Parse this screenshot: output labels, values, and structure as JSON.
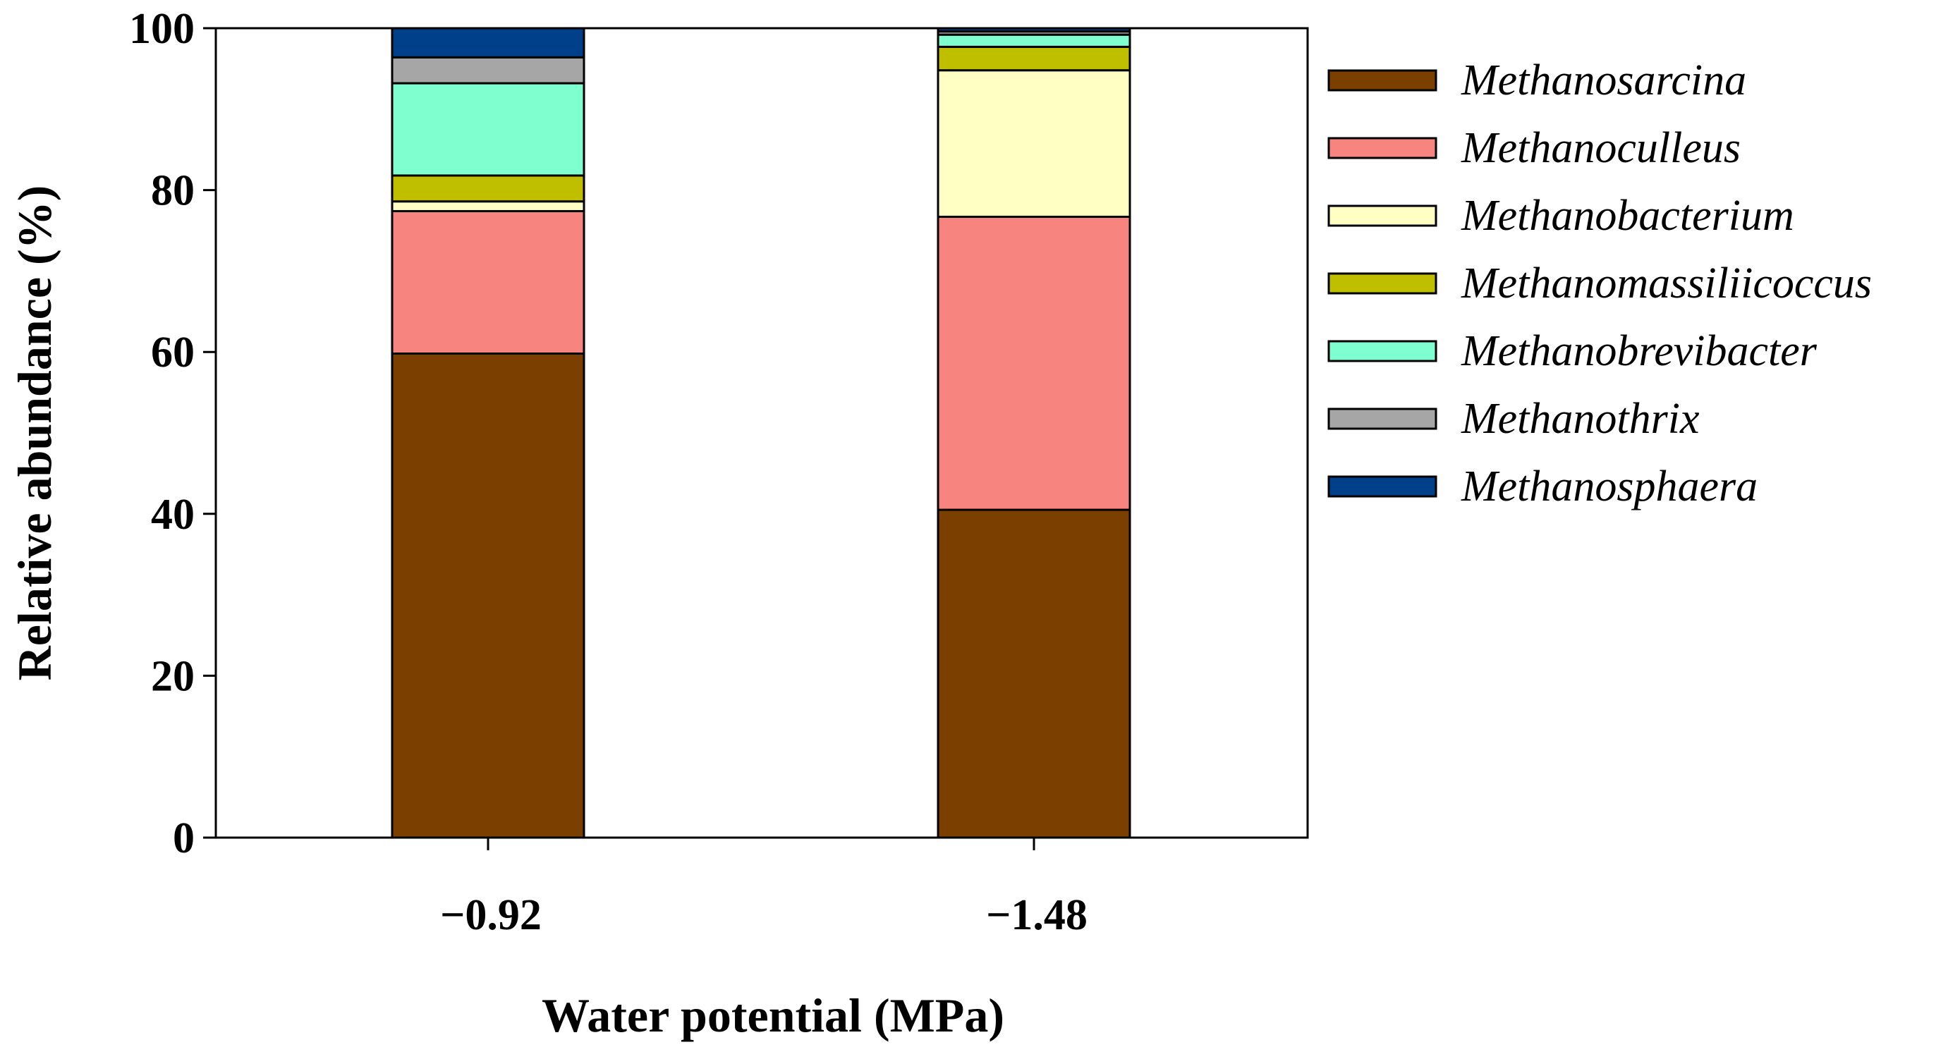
{
  "chart_data": {
    "type": "bar",
    "stacked": true,
    "title": "",
    "xlabel": "Water potential (MPa)",
    "ylabel": "Relative abundance (%)",
    "ylim": [
      0,
      100
    ],
    "yticks": [
      "0",
      "20",
      "40",
      "60",
      "80",
      "100"
    ],
    "categories": [
      "−0.92",
      "−1.48"
    ],
    "legend_position": "right",
    "series": [
      {
        "name": "Methanosarcina",
        "color": "#7B3F00",
        "values": [
          59.8,
          40.5
        ]
      },
      {
        "name": "Methanoculleus",
        "color": "#F88480",
        "values": [
          17.6,
          36.2
        ]
      },
      {
        "name": "Methanobacterium",
        "color": "#FFFFC4",
        "values": [
          1.2,
          18.1
        ]
      },
      {
        "name": "Methanomassiliicoccus",
        "color": "#BFBF00",
        "values": [
          3.2,
          2.9
        ]
      },
      {
        "name": "Methanobrevibacter",
        "color": "#7FFFD0",
        "values": [
          11.4,
          1.5
        ]
      },
      {
        "name": "Methanothrix",
        "color": "#A6A6A6",
        "values": [
          3.2,
          0.4
        ]
      },
      {
        "name": "Methanosphaera",
        "color": "#003F8A",
        "values": [
          3.6,
          0.4
        ]
      }
    ]
  }
}
